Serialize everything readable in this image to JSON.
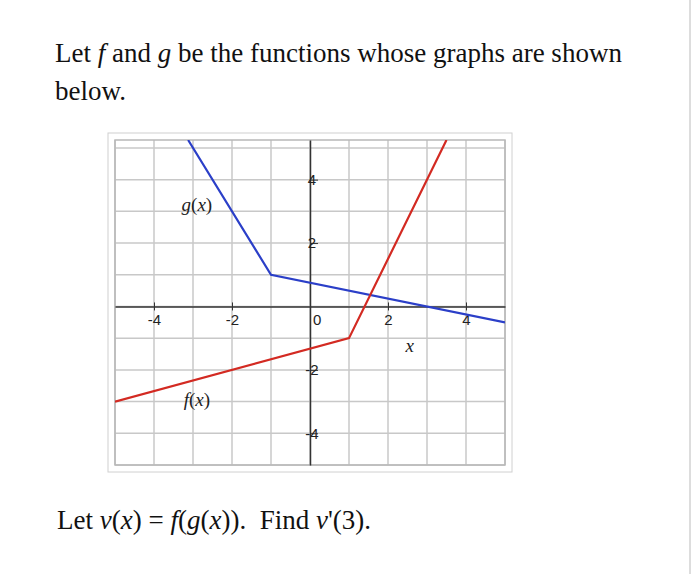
{
  "document": {
    "intro": [
      "Let f and g be the functions whose graphs are shown",
      "below."
    ],
    "question": "Let v(x) = f(g(x)).  Find v'(3)."
  },
  "chart_data": {
    "type": "line",
    "xlabel": "x",
    "xlim": [
      -5,
      5
    ],
    "ylim": [
      -5,
      5.25
    ],
    "xticks": [
      -4,
      -2,
      0,
      2,
      4
    ],
    "yticks": [
      -4,
      -2,
      2,
      4
    ],
    "xgrid": [
      -5,
      -4,
      -3,
      -2,
      -1,
      0,
      1,
      2,
      3,
      4,
      5
    ],
    "ygrid": [
      -5,
      -4,
      -3,
      -2,
      -1,
      0,
      1,
      2,
      3,
      4,
      5
    ],
    "grid": true,
    "series": [
      {
        "color": "#2b3fc8",
        "x": [
          -3.125,
          -1,
          5
        ],
        "values": [
          5.25,
          1,
          -0.5
        ]
      },
      {
        "color": "#d32a22",
        "x": [
          -5,
          1,
          3.5
        ],
        "values": [
          -3,
          -1,
          5.25
        ]
      }
    ],
    "annotations": [
      {
        "text": "g(x)",
        "x": -2.9,
        "y": 3
      },
      {
        "text": "f(x)",
        "x": -2.9,
        "y": -3.15
      }
    ]
  }
}
